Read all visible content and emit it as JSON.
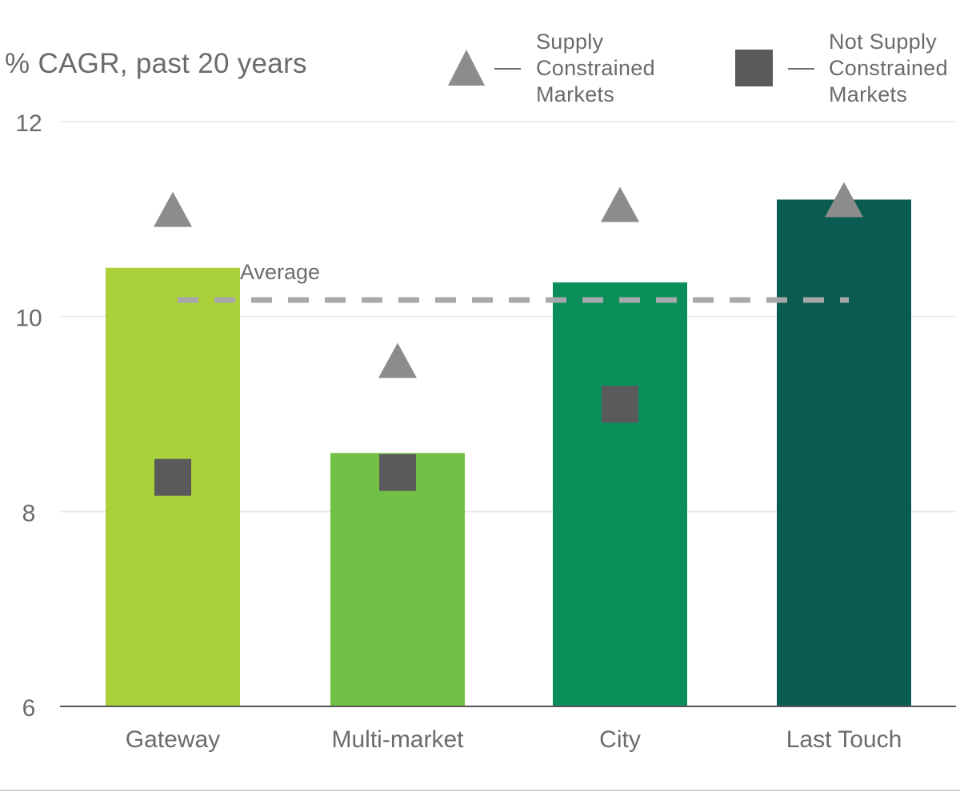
{
  "chart_data": {
    "type": "bar",
    "ylabel": "% CAGR, past 20 years",
    "ylim": [
      6,
      12
    ],
    "yticks": [
      6,
      8,
      10,
      12
    ],
    "grid": true,
    "legend_position": "top-right",
    "categories": [
      "Gateway",
      "Multi-market",
      "City",
      "Last Touch"
    ],
    "values": [
      10.5,
      8.6,
      10.35,
      11.2
    ],
    "bar_colors": [
      "#aad03a",
      "#72c045",
      "#0b8f5a",
      "#0b5c50"
    ],
    "series": [
      {
        "name": "Supply Constrained Markets",
        "marker": "triangle",
        "color": "#8c8c8c",
        "values": [
          11.1,
          9.55,
          11.15,
          11.2
        ]
      },
      {
        "name": "Not Supply Constrained Markets",
        "marker": "square",
        "color": "#5a5a5c",
        "values": [
          8.35,
          8.4,
          9.1,
          null
        ]
      }
    ],
    "reference_line": {
      "label": "Average",
      "value": 10.17,
      "color": "#a6a8ab"
    },
    "legend": {
      "supply_label": "Supply\nConstrained\nMarkets",
      "not_supply_label": "Not Supply\nConstrained\nMarkets"
    }
  }
}
